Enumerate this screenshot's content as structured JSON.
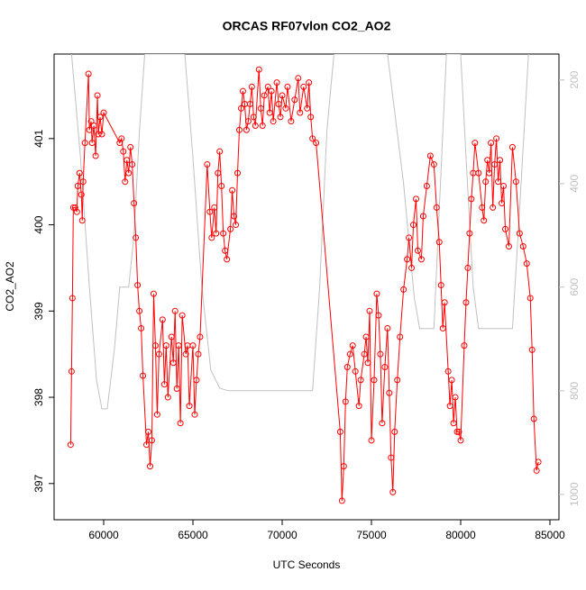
{
  "chart_data": {
    "type": "line",
    "title": "ORCAS RF07vlon CO2_AO2",
    "xlabel": "UTC Seconds",
    "ylabel": "CO2_AO2",
    "xlim": [
      57222,
      85505
    ],
    "xticks": [
      60000,
      65000,
      70000,
      75000,
      80000,
      85000
    ],
    "ylim": [
      396.58,
      401.98
    ],
    "yticks": [
      397,
      398,
      399,
      400,
      401
    ],
    "y2lim": [
      1049,
      150
    ],
    "y2ticks": [
      200,
      400,
      600,
      800,
      1000
    ],
    "series": [
      {
        "color": "#ff0000",
        "markers": true,
        "x": [
          58150,
          58200,
          58250,
          58300,
          58400,
          58500,
          58550,
          58650,
          58750,
          58800,
          58850,
          58950,
          59150,
          59200,
          59300,
          59350,
          59450,
          59550,
          59650,
          59700,
          59800,
          59900,
          60000,
          60900,
          61000,
          61100,
          61200,
          61300,
          61400,
          61500,
          61600,
          61700,
          61800,
          61900,
          62000,
          62100,
          62200,
          62400,
          62500,
          62600,
          62700,
          62800,
          62900,
          63000,
          63100,
          63300,
          63400,
          63500,
          63600,
          63800,
          63900,
          64000,
          64100,
          64200,
          64300,
          64400,
          64600,
          64700,
          64800,
          65000,
          65100,
          65200,
          65300,
          65400,
          65800,
          65950,
          66050,
          66200,
          66300,
          66400,
          66500,
          66600,
          66700,
          66800,
          66900,
          67100,
          67200,
          67300,
          67400,
          67500,
          67600,
          67700,
          67800,
          67900,
          68000,
          68100,
          68200,
          68300,
          68400,
          68500,
          68700,
          68800,
          68900,
          69000,
          69200,
          69300,
          69400,
          69500,
          69700,
          69800,
          69900,
          70000,
          70200,
          70300,
          70500,
          70700,
          70900,
          71000,
          71200,
          71400,
          71500,
          71600,
          71700,
          71900,
          73250,
          73350,
          73450,
          73550,
          73650,
          73800,
          73950,
          74100,
          74300,
          74400,
          74600,
          74700,
          74800,
          74900,
          75000,
          75150,
          75300,
          75400,
          75500,
          75600,
          75750,
          75900,
          76000,
          76100,
          76200,
          76300,
          76450,
          76600,
          76800,
          77000,
          77100,
          77250,
          77350,
          77500,
          77600,
          77800,
          77900,
          78100,
          78300,
          78500,
          78650,
          78800,
          78900,
          79000,
          79100,
          79300,
          79400,
          79500,
          79600,
          79700,
          79800,
          79900,
          80000,
          80200,
          80300,
          80400,
          80500,
          80600,
          80700,
          80800,
          81000,
          81200,
          81300,
          81400,
          81500,
          81600,
          81700,
          81800,
          81900,
          82000,
          82100,
          82200,
          82300,
          82400,
          82500,
          82700,
          82900,
          83100,
          83300,
          83500,
          83700,
          83900,
          84000,
          84100,
          84250,
          84350
        ],
        "values": [
          397.45,
          398.3,
          399.15,
          400.2,
          400.2,
          400.15,
          400.45,
          400.6,
          400.35,
          400.05,
          400.5,
          400.95,
          401.75,
          401.1,
          401.2,
          400.95,
          401.15,
          400.8,
          401.5,
          401.05,
          401.25,
          401.05,
          401.3,
          400.95,
          401.0,
          400.85,
          400.5,
          400.75,
          400.6,
          400.9,
          400.7,
          400.25,
          399.85,
          399.3,
          399.0,
          398.8,
          398.25,
          397.45,
          397.6,
          397.2,
          397.5,
          399.2,
          398.6,
          397.8,
          398.5,
          398.9,
          398.15,
          398.6,
          398.0,
          398.7,
          398.4,
          399.0,
          398.1,
          398.6,
          397.7,
          398.95,
          398.5,
          398.6,
          397.9,
          398.6,
          397.8,
          398.2,
          398.5,
          398.7,
          400.7,
          400.15,
          399.85,
          400.2,
          399.9,
          400.6,
          400.85,
          400.45,
          399.9,
          399.7,
          399.6,
          399.95,
          400.4,
          400.1,
          400.0,
          400.6,
          401.1,
          401.35,
          401.55,
          401.4,
          401.1,
          401.2,
          401.4,
          401.6,
          401.25,
          401.15,
          401.8,
          401.35,
          401.15,
          401.5,
          401.6,
          401.3,
          401.55,
          401.2,
          401.65,
          401.4,
          401.25,
          401.5,
          401.35,
          401.6,
          401.2,
          401.45,
          401.7,
          401.3,
          401.6,
          401.35,
          401.65,
          401.25,
          401.0,
          400.95,
          397.6,
          396.8,
          397.2,
          397.95,
          398.35,
          398.5,
          398.6,
          398.3,
          397.9,
          398.2,
          398.5,
          398.7,
          398.4,
          399.0,
          397.5,
          398.2,
          399.2,
          398.95,
          398.5,
          397.7,
          398.35,
          398.8,
          398.05,
          397.3,
          396.9,
          397.6,
          398.2,
          398.7,
          399.25,
          399.6,
          399.85,
          399.5,
          400.0,
          400.3,
          399.7,
          399.6,
          400.1,
          400.45,
          400.8,
          400.7,
          400.2,
          399.8,
          399.3,
          398.8,
          399.1,
          398.3,
          397.9,
          398.2,
          397.7,
          398.0,
          397.6,
          397.6,
          397.5,
          398.6,
          399.1,
          399.5,
          399.9,
          400.3,
          400.6,
          400.95,
          400.6,
          400.2,
          400.05,
          400.5,
          400.75,
          400.6,
          400.95,
          400.2,
          400.7,
          401.0,
          400.5,
          400.75,
          400.25,
          400.45,
          399.95,
          399.75,
          400.9,
          400.5,
          399.9,
          399.75,
          399.55,
          399.15,
          398.55,
          397.75,
          397.15,
          397.25
        ]
      },
      {
        "color": "#c0c0c0",
        "axis": "y2",
        "markers": false,
        "x": [
          58200,
          58700,
          59200,
          59600,
          59900,
          60200,
          60600,
          60900,
          61400,
          61700,
          62000,
          62300,
          64545,
          65000,
          65500,
          66000,
          66500,
          67000,
          71700,
          72100,
          72500,
          72900,
          75900,
          76800,
          77400,
          77700,
          78500,
          78800,
          79200,
          80000,
          80300,
          80700,
          81000,
          82900,
          83300,
          83800
        ],
        "values": [
          150,
          350,
          600,
          780,
          835,
          835,
          720,
          600,
          600,
          500,
          300,
          150,
          150,
          350,
          600,
          760,
          795,
          800,
          800,
          600,
          300,
          150,
          150,
          400,
          620,
          680,
          680,
          450,
          150,
          150,
          350,
          600,
          680,
          680,
          450,
          150
        ]
      }
    ]
  }
}
